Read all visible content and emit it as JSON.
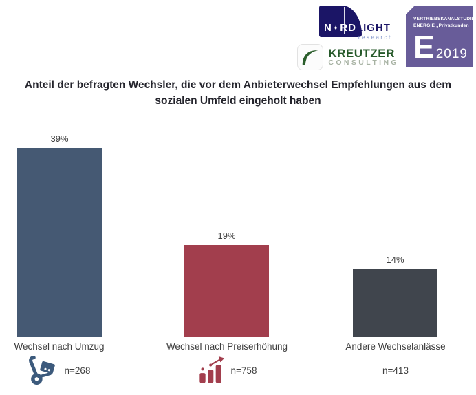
{
  "header": {
    "nordlight": {
      "part1": "N",
      "star_glyph": "✦",
      "part2": "RD",
      "part3": "LIGHT",
      "tagline": "research",
      "navy": "#1b1566"
    },
    "kreutzer": {
      "name": "KREUTZER",
      "subtitle": "CONSULTING",
      "green": "#26592a"
    },
    "badge": {
      "line1": "VERTRIEBSKANALSTUDIE",
      "line2": "ENERGIE  „Privatkunden",
      "big_letter": "E",
      "year": "2019",
      "color": "#685c99"
    }
  },
  "title": "Anteil der befragten Wechsler, die vor dem Anbieterwechsel Empfehlungen aus dem sozialen Umfeld eingeholt haben",
  "chart_data": {
    "type": "bar",
    "categories": [
      "Wechsel nach Umzug",
      "Wechsel nach Preiserhöhung",
      "Andere Wechselanlässe"
    ],
    "values": [
      39,
      19,
      14
    ],
    "value_labels": [
      "39%",
      "19%",
      "14%"
    ],
    "sample_sizes": [
      "n=268",
      "n=758",
      "n=413"
    ],
    "bar_colors": [
      "#455973",
      "#a23e4d",
      "#40454d"
    ],
    "icons": [
      "hand-truck-icon",
      "rising-bars-icon",
      null
    ],
    "title": "Anteil der befragten Wechsler, die vor dem Anbieterwechsel Empfehlungen aus dem sozialen Umfeld eingeholt haben",
    "xlabel": "",
    "ylabel": "",
    "ylim": [
      0,
      45
    ],
    "grid": false,
    "legend": false,
    "value_labels_position": "above-bars"
  }
}
